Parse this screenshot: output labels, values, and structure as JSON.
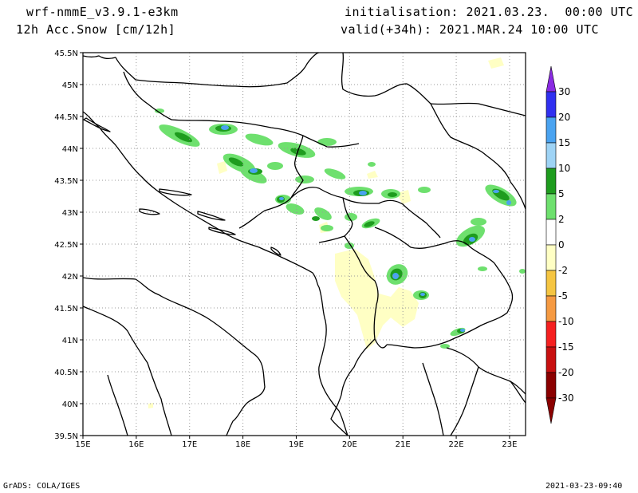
{
  "header": {
    "model": "wrf-nmmE_v3.9.1-e3km",
    "field": "12h Acc.Snow [cm/12h]",
    "init": "initialisation: 2021.03.23.  00:00 UTC",
    "valid": "valid(+34h): 2021.MAR.24 10:00 UTC"
  },
  "footer": {
    "credit": "GrADS: COLA/IGES",
    "timestamp": "2021-03-23-09:40"
  },
  "axes": {
    "lat_labels": [
      "45.5N",
      "45N",
      "44.5N",
      "44N",
      "43.5N",
      "43N",
      "42.5N",
      "42N",
      "41.5N",
      "41N",
      "40.5N",
      "40N",
      "39.5N"
    ],
    "lon_labels": [
      "15E",
      "16E",
      "17E",
      "18E",
      "19E",
      "20E",
      "21E",
      "22E",
      "23E"
    ]
  },
  "colorbar": {
    "labels": [
      "30",
      "20",
      "15",
      "10",
      "5",
      "2",
      "0",
      "-2",
      "-5",
      "-10",
      "-15",
      "-20",
      "-30"
    ],
    "colors": [
      "#8A2BE2",
      "#3030F0",
      "#4AA3F0",
      "#9ED3F5",
      "#1E9C1E",
      "#6EE06E",
      "#FFFFFF",
      "#FFFFC4",
      "#F5C542",
      "#F59A42",
      "#F52020",
      "#C81010",
      "#8B0000"
    ]
  },
  "map": {
    "extent": {
      "lon_min": 15,
      "lon_max": 23.3,
      "lat_min": 39.5,
      "lat_max": 45.5
    },
    "snow_colors": {
      "light": "#6EE06E",
      "medium": "#1E9C1E",
      "heavy": "#4AA3F0",
      "negative": "#FFFFC4"
    }
  }
}
